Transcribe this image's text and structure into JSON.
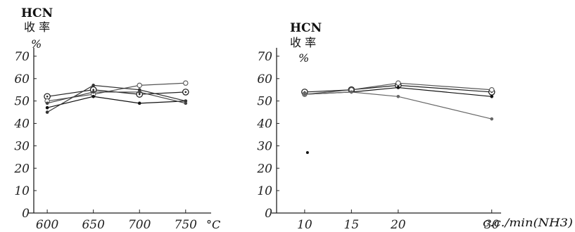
{
  "chart_data": [
    {
      "type": "line",
      "title": "HCN",
      "subtitle": "收 率",
      "ylabel": "%",
      "xlabel": "°C",
      "x": [
        600,
        650,
        700,
        750
      ],
      "xticks": [
        "600",
        "650",
        "700",
        "750"
      ],
      "yticks": [
        "0",
        "10",
        "20",
        "30",
        "40",
        "50",
        "60",
        "70"
      ],
      "ylim": [
        0,
        75
      ],
      "xlim": [
        590,
        770
      ],
      "grid": false,
      "series": [
        {
          "marker": "circle-dot",
          "color": "#222222",
          "values": [
            52,
            55,
            53,
            54
          ]
        },
        {
          "marker": "open-circle",
          "color": "#555555",
          "values": [
            50,
            53,
            57,
            58
          ]
        },
        {
          "marker": "dot",
          "color": "#111111",
          "values": [
            47,
            52,
            49,
            50
          ]
        },
        {
          "marker": "dot",
          "color": "#333333",
          "values": [
            45,
            57,
            55,
            50
          ]
        },
        {
          "marker": "dot",
          "color": "#444444",
          "values": [
            49,
            54,
            54,
            49
          ]
        }
      ]
    },
    {
      "type": "line",
      "title": "HCN",
      "subtitle": "收 率",
      "ylabel": "%",
      "xlabel": "c.c./min(NH3)",
      "x": [
        10,
        15,
        20,
        30
      ],
      "xticks": [
        "10",
        "15",
        "20",
        "30"
      ],
      "yticks": [
        "0",
        "10",
        "20",
        "30",
        "40",
        "50",
        "60",
        "70"
      ],
      "ylim": [
        0,
        75
      ],
      "xlim": [
        7,
        31
      ],
      "grid": false,
      "outlier": {
        "x": 10.3,
        "y": 27
      },
      "series": [
        {
          "marker": "circle-dot",
          "color": "#222222",
          "values": [
            54,
            55,
            57,
            54
          ]
        },
        {
          "marker": "open-circle",
          "color": "#555555",
          "values": [
            53,
            55,
            58,
            55
          ]
        },
        {
          "marker": "dot",
          "color": "#111111",
          "values": [
            53,
            54,
            56,
            52
          ]
        },
        {
          "marker": "dot",
          "color": "#666666",
          "values": [
            53,
            54,
            52,
            42
          ]
        }
      ]
    }
  ]
}
